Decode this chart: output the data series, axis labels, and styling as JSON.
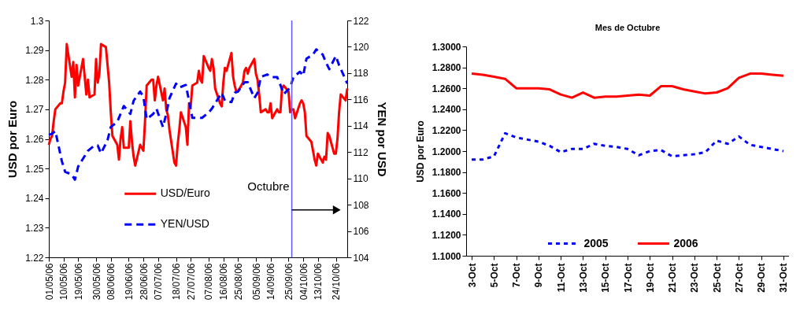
{
  "chart_data": [
    {
      "type": "line",
      "ylabel": "USD por Euro",
      "y2label": "YEN por USD",
      "legend": "bottom",
      "xlim": [
        "2006-05-01",
        "2006-10-31"
      ],
      "xticks": [
        {
          "value": "2006-05-01",
          "label": "01/05/06"
        },
        {
          "value": "2006-05-10",
          "label": "10/05/06"
        },
        {
          "value": "2006-05-19",
          "label": "19/05/06"
        },
        {
          "value": "2006-05-30",
          "label": "30/05/06"
        },
        {
          "value": "2006-06-08",
          "label": "08/06/06"
        },
        {
          "value": "2006-06-19",
          "label": "19/06/06"
        },
        {
          "value": "2006-06-28",
          "label": "28/06/06"
        },
        {
          "value": "2006-07-07",
          "label": "07/07/06"
        },
        {
          "value": "2006-07-18",
          "label": "18/07/06"
        },
        {
          "value": "2006-07-27",
          "label": "27/07/06"
        },
        {
          "value": "2006-08-07",
          "label": "07/08/06"
        },
        {
          "value": "2006-08-16",
          "label": "16/08/06"
        },
        {
          "value": "2006-08-25",
          "label": "25/08/06"
        },
        {
          "value": "2006-09-05",
          "label": "05/09/06"
        },
        {
          "value": "2006-09-14",
          "label": "14/09/06"
        },
        {
          "value": "2006-09-25",
          "label": "25/09/06"
        },
        {
          "value": "2006-10-04",
          "label": "04/10/06"
        },
        {
          "value": "2006-10-13",
          "label": "13/10/06"
        },
        {
          "value": "2006-10-24",
          "label": "24/10/06"
        }
      ],
      "ylim": [
        1.22,
        1.3
      ],
      "yticks": [
        1.22,
        1.23,
        1.24,
        1.25,
        1.26,
        1.27,
        1.28,
        1.29,
        1.3
      ],
      "y2lim": [
        104,
        122
      ],
      "y2ticks": [
        104,
        106,
        108,
        110,
        112,
        114,
        116,
        118,
        120,
        122
      ],
      "ref_lines": [
        {
          "axis": "x",
          "value": "2006-09-27",
          "label": "Octubre",
          "color": "#5b5bff"
        }
      ],
      "series": [
        {
          "name": "USD/Euro",
          "color": "#ff0000",
          "line_style": "solid",
          "x": [
            "2006-05-01",
            "2006-05-02",
            "2006-05-03",
            "2006-05-04",
            "2006-05-05",
            "2006-05-08",
            "2006-05-09",
            "2006-05-10",
            "2006-05-11",
            "2006-05-12",
            "2006-05-15",
            "2006-05-16",
            "2006-05-17",
            "2006-05-18",
            "2006-05-19",
            "2006-05-22",
            "2006-05-23",
            "2006-05-24",
            "2006-05-25",
            "2006-05-26",
            "2006-05-29",
            "2006-05-30",
            "2006-05-31",
            "2006-06-01",
            "2006-06-02",
            "2006-06-05",
            "2006-06-06",
            "2006-06-07",
            "2006-06-08",
            "2006-06-09",
            "2006-06-12",
            "2006-06-13",
            "2006-06-14",
            "2006-06-15",
            "2006-06-16",
            "2006-06-19",
            "2006-06-20",
            "2006-06-21",
            "2006-06-22",
            "2006-06-23",
            "2006-06-26",
            "2006-06-27",
            "2006-06-28",
            "2006-06-29",
            "2006-06-30",
            "2006-07-03",
            "2006-07-04",
            "2006-07-05",
            "2006-07-06",
            "2006-07-07",
            "2006-07-10",
            "2006-07-11",
            "2006-07-12",
            "2006-07-13",
            "2006-07-14",
            "2006-07-17",
            "2006-07-18",
            "2006-07-19",
            "2006-07-20",
            "2006-07-21",
            "2006-07-24",
            "2006-07-25",
            "2006-07-26",
            "2006-07-27",
            "2006-07-28",
            "2006-07-31",
            "2006-08-01",
            "2006-08-02",
            "2006-08-03",
            "2006-08-04",
            "2006-08-07",
            "2006-08-08",
            "2006-08-09",
            "2006-08-10",
            "2006-08-11",
            "2006-08-14",
            "2006-08-15",
            "2006-08-16",
            "2006-08-17",
            "2006-08-18",
            "2006-08-21",
            "2006-08-22",
            "2006-08-23",
            "2006-08-24",
            "2006-08-25",
            "2006-08-28",
            "2006-08-29",
            "2006-08-30",
            "2006-08-31",
            "2006-09-01",
            "2006-09-04",
            "2006-09-05",
            "2006-09-06",
            "2006-09-07",
            "2006-09-08",
            "2006-09-11",
            "2006-09-12",
            "2006-09-13",
            "2006-09-14",
            "2006-09-15",
            "2006-09-18",
            "2006-09-19",
            "2006-09-20",
            "2006-09-21",
            "2006-09-22",
            "2006-09-25",
            "2006-09-26",
            "2006-09-27",
            "2006-09-28",
            "2006-09-29",
            "2006-10-02",
            "2006-10-03",
            "2006-10-04",
            "2006-10-05",
            "2006-10-06",
            "2006-10-09",
            "2006-10-10",
            "2006-10-11",
            "2006-10-12",
            "2006-10-13",
            "2006-10-16",
            "2006-10-17",
            "2006-10-18",
            "2006-10-19",
            "2006-10-20",
            "2006-10-23",
            "2006-10-24",
            "2006-10-25",
            "2006-10-26",
            "2006-10-27",
            "2006-10-30",
            "2006-10-31"
          ],
          "values": [
            1.258,
            1.26,
            1.261,
            1.266,
            1.27,
            1.272,
            1.272,
            1.276,
            1.279,
            1.292,
            1.281,
            1.286,
            1.274,
            1.285,
            1.278,
            1.287,
            1.281,
            1.275,
            1.28,
            1.274,
            1.275,
            1.287,
            1.279,
            1.282,
            1.292,
            1.291,
            1.285,
            1.279,
            1.269,
            1.261,
            1.258,
            1.253,
            1.26,
            1.264,
            1.257,
            1.257,
            1.266,
            1.259,
            1.254,
            1.251,
            1.258,
            1.257,
            1.256,
            1.266,
            1.278,
            1.28,
            1.28,
            1.273,
            1.278,
            1.281,
            1.273,
            1.277,
            1.27,
            1.268,
            1.263,
            1.252,
            1.251,
            1.258,
            1.263,
            1.269,
            1.264,
            1.258,
            1.272,
            1.271,
            1.278,
            1.279,
            1.283,
            1.28,
            1.279,
            1.288,
            1.284,
            1.283,
            1.287,
            1.284,
            1.277,
            1.272,
            1.271,
            1.279,
            1.284,
            1.283,
            1.289,
            1.281,
            1.278,
            1.276,
            1.276,
            1.279,
            1.283,
            1.284,
            1.282,
            1.284,
            1.287,
            1.282,
            1.28,
            1.275,
            1.269,
            1.27,
            1.269,
            1.269,
            1.272,
            1.267,
            1.27,
            1.269,
            1.269,
            1.277,
            1.278,
            1.276,
            1.269,
            1.27,
            1.27,
            1.267,
            1.272,
            1.273,
            1.272,
            1.269,
            1.261,
            1.259,
            1.256,
            1.253,
            1.251,
            1.255,
            1.252,
            1.254,
            1.253,
            1.262,
            1.261,
            1.255,
            1.255,
            1.26,
            1.269,
            1.275,
            1.273,
            1.277
          ]
        },
        {
          "name": "YEN/USD",
          "color": "#0000ff",
          "line_style": "dashed",
          "axis": "y2",
          "x": [
            "2006-05-01",
            "2006-05-03",
            "2006-05-05",
            "2006-05-09",
            "2006-05-11",
            "2006-05-15",
            "2006-05-17",
            "2006-05-19",
            "2006-05-23",
            "2006-05-25",
            "2006-05-29",
            "2006-05-31",
            "2006-06-02",
            "2006-06-06",
            "2006-06-08",
            "2006-06-12",
            "2006-06-14",
            "2006-06-16",
            "2006-06-20",
            "2006-06-22",
            "2006-06-26",
            "2006-06-28",
            "2006-06-30",
            "2006-07-04",
            "2006-07-06",
            "2006-07-10",
            "2006-07-12",
            "2006-07-14",
            "2006-07-18",
            "2006-07-20",
            "2006-07-24",
            "2006-07-26",
            "2006-07-28",
            "2006-08-01",
            "2006-08-03",
            "2006-08-07",
            "2006-08-09",
            "2006-08-11",
            "2006-08-15",
            "2006-08-17",
            "2006-08-21",
            "2006-08-23",
            "2006-08-25",
            "2006-08-29",
            "2006-08-31",
            "2006-09-04",
            "2006-09-06",
            "2006-09-08",
            "2006-09-12",
            "2006-09-14",
            "2006-09-18",
            "2006-09-20",
            "2006-09-22",
            "2006-09-26",
            "2006-09-28",
            "2006-10-02",
            "2006-10-04",
            "2006-10-06",
            "2006-10-10",
            "2006-10-12",
            "2006-10-16",
            "2006-10-18",
            "2006-10-20",
            "2006-10-24",
            "2006-10-26",
            "2006-10-30",
            "2006-10-31"
          ],
          "values": [
            113.3,
            113.4,
            113.6,
            111.3,
            110.5,
            110.3,
            109.9,
            110.9,
            111.7,
            112.1,
            112.5,
            112.5,
            111.9,
            112.9,
            113.9,
            114.3,
            114.9,
            115.5,
            114.9,
            115.9,
            116.6,
            116.2,
            114.5,
            114.9,
            115.3,
            113.9,
            114.9,
            116.1,
            117.2,
            116.9,
            117.1,
            115.9,
            114.6,
            114.6,
            114.6,
            115.0,
            115.3,
            115.7,
            116.5,
            115.9,
            115.8,
            116.5,
            116.6,
            117.3,
            117.3,
            116.1,
            116.5,
            117.7,
            117.9,
            117.7,
            117.7,
            117.1,
            116.4,
            116.9,
            117.7,
            118.1,
            117.8,
            119.1,
            119.4,
            119.8,
            119.4,
            118.8,
            118.3,
            119.3,
            118.6,
            117.5,
            117.2
          ]
        }
      ]
    },
    {
      "type": "line",
      "title": "Mes de Octubre",
      "ylabel": "USD por Euro",
      "legend": "bottom",
      "categories": [
        "3-Oct",
        null,
        "5-Oct",
        null,
        "7-Oct",
        null,
        "9-Oct",
        null,
        "11-Oct",
        null,
        "13-Oct",
        null,
        "15-Oct",
        null,
        "17-Oct",
        null,
        "19-Oct",
        null,
        "21-Oct",
        null,
        "23-Oct",
        null,
        "25-Oct",
        null,
        "27-Oct",
        null,
        "29-Oct",
        null,
        "31-Oct"
      ],
      "ylim": [
        1.1,
        1.3
      ],
      "yticks": [
        {
          "value": 1.1,
          "label": "1.1000"
        },
        {
          "value": 1.12,
          "label": "1.1200"
        },
        {
          "value": 1.14,
          "label": "1.1400"
        },
        {
          "value": 1.16,
          "label": "1.1600"
        },
        {
          "value": 1.18,
          "label": "1.1800"
        },
        {
          "value": 1.2,
          "label": "1.2000"
        },
        {
          "value": 1.22,
          "label": "1.2200"
        },
        {
          "value": 1.24,
          "label": "1.2400"
        },
        {
          "value": 1.26,
          "label": "1.2600"
        },
        {
          "value": 1.28,
          "label": "1.2800"
        },
        {
          "value": 1.3,
          "label": "1.3000"
        }
      ],
      "series": [
        {
          "name": "2005",
          "color": "#0000ff",
          "line_style": "dotted",
          "values": [
            1.192,
            1.192,
            1.195,
            1.217,
            1.213,
            1.211,
            1.209,
            1.205,
            1.199,
            1.202,
            1.202,
            1.207,
            1.205,
            1.204,
            1.202,
            1.196,
            1.2,
            1.201,
            1.195,
            1.196,
            1.197,
            1.199,
            1.21,
            1.207,
            1.214,
            1.206,
            1.204,
            1.202,
            1.2
          ]
        },
        {
          "name": "2006",
          "color": "#ff0000",
          "line_style": "solid",
          "values": [
            1.274,
            1.273,
            1.271,
            1.269,
            1.26,
            1.26,
            1.26,
            1.259,
            1.254,
            1.251,
            1.256,
            1.251,
            1.252,
            1.252,
            1.253,
            1.254,
            1.253,
            1.262,
            1.262,
            1.259,
            1.257,
            1.255,
            1.256,
            1.26,
            1.27,
            1.274,
            1.274,
            1.273,
            1.272
          ]
        }
      ]
    }
  ]
}
